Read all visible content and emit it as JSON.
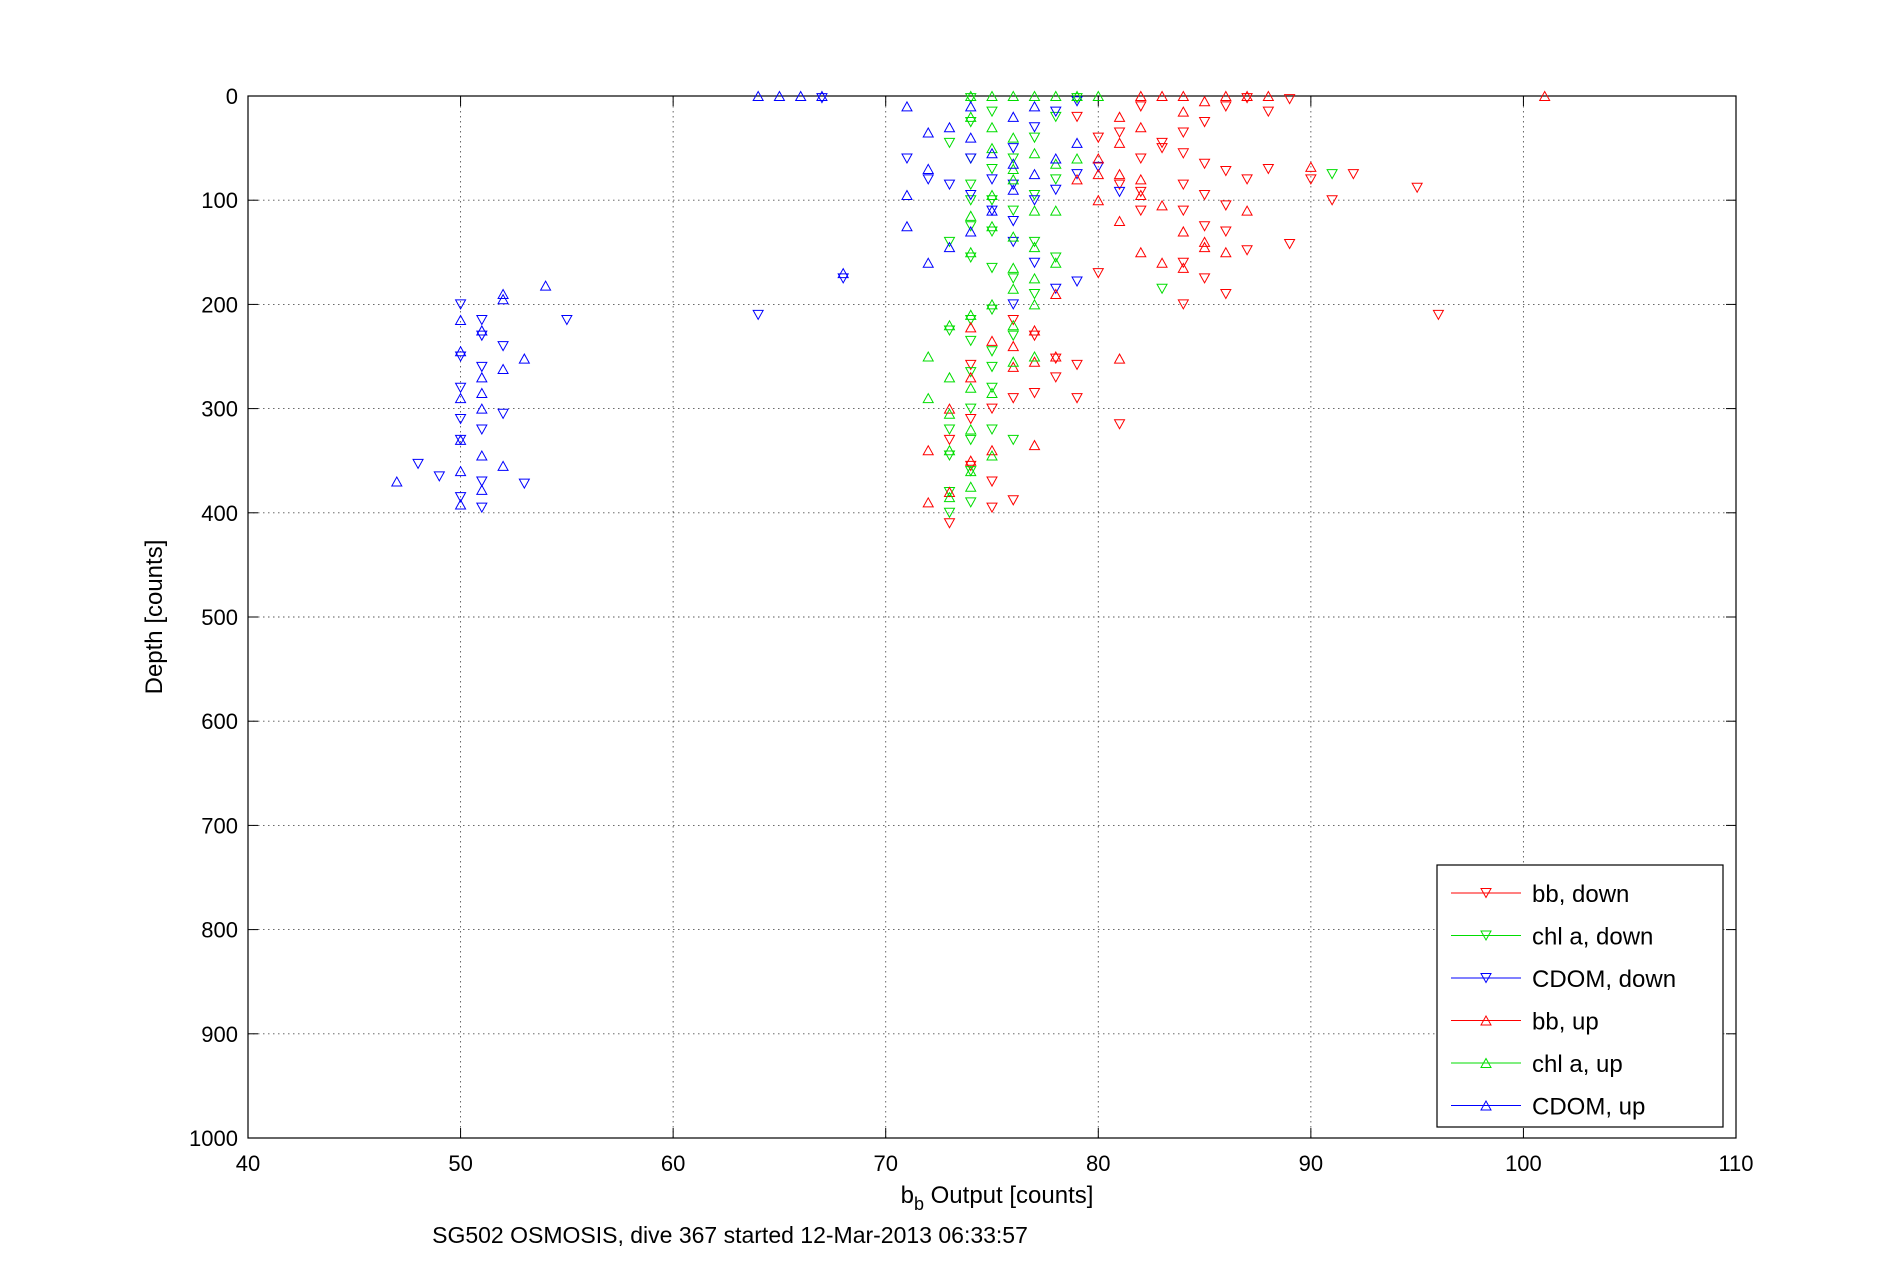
{
  "chart_data": {
    "type": "scatter",
    "title": "",
    "xlabel_main": "b",
    "xlabel_sub": "b",
    "xlabel_rest": " Output [counts]",
    "ylabel": "Depth [counts]",
    "caption": "SG502 OSMOSIS, dive 367 started 12-Mar-2013 06:33:57",
    "xlim": [
      40,
      110
    ],
    "ylim": [
      0,
      1000
    ],
    "y_reversed": true,
    "grid": true,
    "legend_position": "bottom-right",
    "x_ticks": [
      "40",
      "50",
      "60",
      "70",
      "80",
      "90",
      "100",
      "110"
    ],
    "y_ticks": [
      "0",
      "100",
      "200",
      "300",
      "400",
      "500",
      "600",
      "700",
      "800",
      "900",
      "1000"
    ],
    "series": [
      {
        "name": "bb, down",
        "color": "#ff0000",
        "marker": "triangle-down",
        "points": [
          [
            87,
            2
          ],
          [
            88,
            15
          ],
          [
            89,
            3
          ],
          [
            86,
            10
          ],
          [
            85,
            25
          ],
          [
            84,
            35
          ],
          [
            83,
            45
          ],
          [
            84,
            55
          ],
          [
            85,
            65
          ],
          [
            86,
            72
          ],
          [
            88,
            70
          ],
          [
            90,
            80
          ],
          [
            92,
            75
          ],
          [
            91,
            100
          ],
          [
            89,
            142
          ],
          [
            87,
            148
          ],
          [
            86,
            130
          ],
          [
            85,
            125
          ],
          [
            84,
            110
          ],
          [
            82,
            92
          ],
          [
            81,
            85
          ],
          [
            82,
            60
          ],
          [
            83,
            50
          ],
          [
            80,
            40
          ],
          [
            79,
            20
          ],
          [
            81,
            35
          ],
          [
            82,
            10
          ],
          [
            84,
            85
          ],
          [
            85,
            95
          ],
          [
            87,
            80
          ],
          [
            86,
            105
          ],
          [
            84,
            160
          ],
          [
            85,
            175
          ],
          [
            86,
            190
          ],
          [
            84,
            200
          ],
          [
            82,
            110
          ],
          [
            80,
            170
          ],
          [
            79,
            258
          ],
          [
            78,
            252
          ],
          [
            77,
            285
          ],
          [
            76,
            290
          ],
          [
            75,
            300
          ],
          [
            74,
            310
          ],
          [
            73,
            330
          ],
          [
            74,
            355
          ],
          [
            75,
            370
          ],
          [
            76,
            388
          ],
          [
            75,
            395
          ],
          [
            73,
            410
          ],
          [
            96,
            210
          ],
          [
            95,
            88
          ],
          [
            81,
            315
          ],
          [
            79,
            290
          ],
          [
            78,
            270
          ],
          [
            77,
            230
          ],
          [
            76,
            215
          ],
          [
            74,
            258
          ]
        ]
      },
      {
        "name": "chl a, down",
        "color": "#00dd00",
        "marker": "triangle-down",
        "points": [
          [
            74,
            2
          ],
          [
            75,
            15
          ],
          [
            74,
            25
          ],
          [
            73,
            45
          ],
          [
            74,
            60
          ],
          [
            75,
            70
          ],
          [
            74,
            85
          ],
          [
            75,
            100
          ],
          [
            76,
            110
          ],
          [
            74,
            125
          ],
          [
            73,
            140
          ],
          [
            74,
            155
          ],
          [
            75,
            165
          ],
          [
            76,
            175
          ],
          [
            77,
            190
          ],
          [
            75,
            205
          ],
          [
            74,
            215
          ],
          [
            73,
            225
          ],
          [
            74,
            235
          ],
          [
            75,
            245
          ],
          [
            74,
            265
          ],
          [
            75,
            280
          ],
          [
            74,
            300
          ],
          [
            73,
            320
          ],
          [
            74,
            330
          ],
          [
            73,
            345
          ],
          [
            74,
            360
          ],
          [
            73,
            380
          ],
          [
            74,
            390
          ],
          [
            73,
            400
          ],
          [
            77,
            95
          ],
          [
            78,
            80
          ],
          [
            79,
            2
          ],
          [
            83,
            185
          ],
          [
            91,
            75
          ],
          [
            76,
            330
          ],
          [
            75,
            320
          ],
          [
            77,
            140
          ],
          [
            78,
            155
          ],
          [
            76,
            230
          ],
          [
            75,
            260
          ],
          [
            76,
            60
          ],
          [
            77,
            40
          ],
          [
            78,
            20
          ],
          [
            75,
            130
          ],
          [
            74,
            100
          ]
        ]
      },
      {
        "name": "CDOM, down",
        "color": "#0000ff",
        "marker": "triangle-down",
        "points": [
          [
            68,
            175
          ],
          [
            64,
            210
          ],
          [
            67,
            2
          ],
          [
            71,
            60
          ],
          [
            72,
            80
          ],
          [
            73,
            85
          ],
          [
            74,
            95
          ],
          [
            75,
            110
          ],
          [
            76,
            120
          ],
          [
            77,
            100
          ],
          [
            78,
            90
          ],
          [
            79,
            75
          ],
          [
            76,
            140
          ],
          [
            77,
            160
          ],
          [
            78,
            185
          ],
          [
            76,
            200
          ],
          [
            79,
            178
          ],
          [
            80,
            68
          ],
          [
            81,
            92
          ],
          [
            79,
            5
          ],
          [
            48,
            353
          ],
          [
            49,
            365
          ],
          [
            50,
            385
          ],
          [
            50,
            330
          ],
          [
            51,
            260
          ],
          [
            51,
            320
          ],
          [
            52,
            305
          ],
          [
            53,
            372
          ],
          [
            55,
            215
          ],
          [
            50,
            200
          ],
          [
            51,
            215
          ],
          [
            50,
            310
          ],
          [
            51,
            370
          ],
          [
            52,
            240
          ],
          [
            51,
            395
          ],
          [
            50,
            280
          ],
          [
            51,
            230
          ],
          [
            50,
            250
          ],
          [
            75,
            80
          ],
          [
            74,
            60
          ],
          [
            76,
            50
          ],
          [
            77,
            30
          ],
          [
            78,
            15
          ],
          [
            76,
            85
          ]
        ]
      },
      {
        "name": "bb, up",
        "color": "#ff0000",
        "marker": "triangle-up",
        "points": [
          [
            101,
            0
          ],
          [
            87,
            0
          ],
          [
            85,
            5
          ],
          [
            84,
            15
          ],
          [
            82,
            30
          ],
          [
            81,
            45
          ],
          [
            80,
            60
          ],
          [
            81,
            75
          ],
          [
            82,
            95
          ],
          [
            83,
            105
          ],
          [
            84,
            130
          ],
          [
            85,
            145
          ],
          [
            84,
            165
          ],
          [
            83,
            160
          ],
          [
            82,
            150
          ],
          [
            81,
            120
          ],
          [
            80,
            100
          ],
          [
            79,
            80
          ],
          [
            81,
            20
          ],
          [
            82,
            0
          ],
          [
            83,
            0
          ],
          [
            84,
            0
          ],
          [
            86,
            0
          ],
          [
            88,
            0
          ],
          [
            90,
            68
          ],
          [
            86,
            150
          ],
          [
            87,
            110
          ],
          [
            85,
            140
          ],
          [
            80,
            75
          ],
          [
            78,
            190
          ],
          [
            77,
            225
          ],
          [
            76,
            240
          ],
          [
            74,
            270
          ],
          [
            72,
            340
          ],
          [
            72,
            390
          ],
          [
            73,
            380
          ],
          [
            74,
            350
          ],
          [
            75,
            340
          ],
          [
            77,
            335
          ],
          [
            78,
            250
          ],
          [
            77,
            255
          ],
          [
            76,
            260
          ],
          [
            75,
            235
          ],
          [
            74,
            222
          ],
          [
            73,
            300
          ],
          [
            81,
            252
          ],
          [
            82,
            80
          ]
        ]
      },
      {
        "name": "chl a, up",
        "color": "#00dd00",
        "marker": "triangle-up",
        "points": [
          [
            74,
            0
          ],
          [
            75,
            0
          ],
          [
            76,
            0
          ],
          [
            77,
            0
          ],
          [
            78,
            0
          ],
          [
            79,
            0
          ],
          [
            80,
            0
          ],
          [
            74,
            20
          ],
          [
            75,
            30
          ],
          [
            76,
            40
          ],
          [
            77,
            55
          ],
          [
            78,
            65
          ],
          [
            76,
            80
          ],
          [
            75,
            95
          ],
          [
            74,
            115
          ],
          [
            75,
            125
          ],
          [
            76,
            135
          ],
          [
            77,
            145
          ],
          [
            78,
            160
          ],
          [
            77,
            175
          ],
          [
            76,
            185
          ],
          [
            75,
            200
          ],
          [
            74,
            210
          ],
          [
            73,
            220
          ],
          [
            72,
            250
          ],
          [
            73,
            270
          ],
          [
            74,
            280
          ],
          [
            72,
            290
          ],
          [
            73,
            305
          ],
          [
            74,
            320
          ],
          [
            73,
            340
          ],
          [
            74,
            360
          ],
          [
            73,
            385
          ],
          [
            74,
            375
          ],
          [
            75,
            345
          ],
          [
            76,
            255
          ],
          [
            77,
            250
          ],
          [
            75,
            285
          ],
          [
            76,
            220
          ],
          [
            77,
            200
          ],
          [
            78,
            110
          ],
          [
            79,
            60
          ],
          [
            77,
            110
          ],
          [
            76,
            70
          ],
          [
            75,
            50
          ],
          [
            74,
            150
          ],
          [
            76,
            165
          ]
        ]
      },
      {
        "name": "CDOM, up",
        "color": "#0000ff",
        "marker": "triangle-up",
        "points": [
          [
            64,
            0
          ],
          [
            65,
            0
          ],
          [
            66,
            0
          ],
          [
            67,
            0
          ],
          [
            68,
            170
          ],
          [
            71,
            10
          ],
          [
            72,
            35
          ],
          [
            73,
            30
          ],
          [
            74,
            40
          ],
          [
            72,
            70
          ],
          [
            71,
            95
          ],
          [
            71,
            125
          ],
          [
            72,
            160
          ],
          [
            73,
            145
          ],
          [
            74,
            130
          ],
          [
            75,
            110
          ],
          [
            76,
            90
          ],
          [
            77,
            75
          ],
          [
            78,
            60
          ],
          [
            79,
            45
          ],
          [
            76,
            20
          ],
          [
            77,
            10
          ],
          [
            74,
            10
          ],
          [
            75,
            55
          ],
          [
            76,
            65
          ],
          [
            54,
            182
          ],
          [
            52,
            190
          ],
          [
            53,
            252
          ],
          [
            52,
            262
          ],
          [
            51,
            285
          ],
          [
            52,
            355
          ],
          [
            51,
            345
          ],
          [
            50,
            360
          ],
          [
            51,
            378
          ],
          [
            50,
            392
          ],
          [
            47,
            370
          ],
          [
            50,
            330
          ],
          [
            51,
            300
          ],
          [
            50,
            290
          ],
          [
            51,
            270
          ],
          [
            50,
            245
          ],
          [
            51,
            225
          ],
          [
            50,
            215
          ],
          [
            52,
            195
          ]
        ]
      }
    ]
  }
}
